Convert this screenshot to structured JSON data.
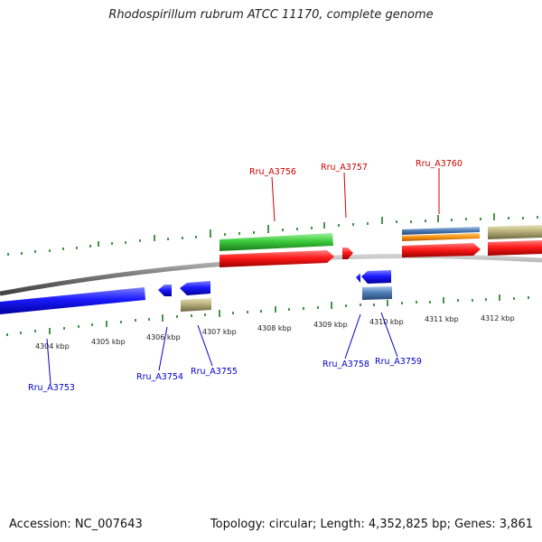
{
  "title": "Rhodospirillum rubrum ATCC 11170, complete genome",
  "footer": {
    "accession": "Accession: NC_007643",
    "summary": "Topology: circular; Length: 4,352,825 bp; Genes: 3,861"
  },
  "colors": {
    "forward_cds": "#ff1a1a",
    "reverse_cds": "#1a1aff",
    "green_feature": "#3ccc3c",
    "khaki_feature": "#b8b07a",
    "steel_feature": "#4f7fb8",
    "orange_feature": "#ff9a1a",
    "tick": "#1a7a1a",
    "backbone": "#7a7a7a",
    "forward_label": "#cc0000",
    "reverse_label": "#0000cc"
  },
  "scale_labels": [
    "4304 kbp",
    "4305 kbp",
    "4306 kbp",
    "4307 kbp",
    "4308 kbp",
    "4309 kbp",
    "4310 kbp",
    "4311 kbp",
    "4312 kbp"
  ],
  "gene_labels": {
    "top": [
      "Rru_A3756",
      "Rru_A3757",
      "Rru_A3760"
    ],
    "bottom": [
      "Rru_A3753",
      "Rru_A3754",
      "Rru_A3755",
      "Rru_A3758",
      "Rru_A3759"
    ]
  }
}
